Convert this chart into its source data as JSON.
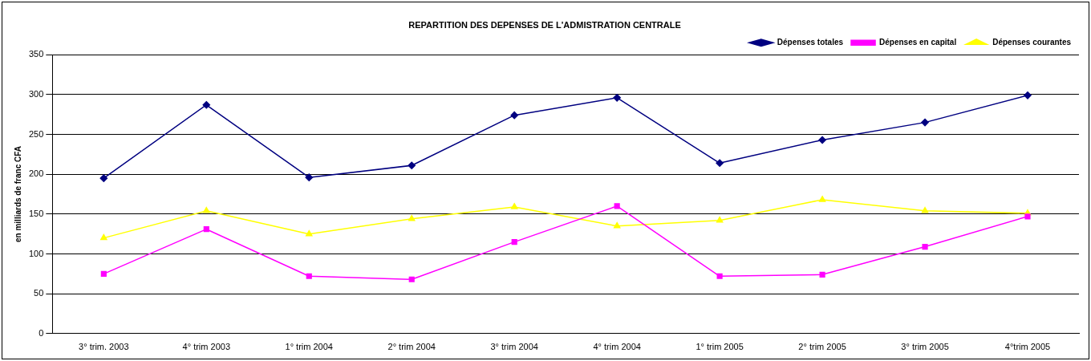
{
  "chart_data": {
    "type": "line",
    "title": "REPARTITION DES DEPENSES DE L'ADMISTRATION CENTRALE",
    "ylabel": "en milliards de franc CFA",
    "categories": [
      "3° trim. 2003",
      "4° trim 2003",
      "1° trim 2004",
      "2° trim 2004",
      "3° trim 2004",
      "4° trim 2004",
      "1° trim 2005",
      "2° trim 2005",
      "3° trim 2005",
      "4°trim 2005"
    ],
    "series": [
      {
        "name": "Dépenses totales",
        "color": "#000080",
        "marker": "diamond",
        "values": [
          195,
          287,
          196,
          211,
          274,
          296,
          214,
          243,
          265,
          299
        ]
      },
      {
        "name": "Dépenses en capital",
        "color": "#ff00ff",
        "marker": "square",
        "values": [
          75,
          131,
          72,
          68,
          115,
          160,
          72,
          74,
          109,
          147
        ]
      },
      {
        "name": "Dépenses courantes",
        "color": "#ffff00",
        "marker": "triangle",
        "values": [
          120,
          154,
          125,
          144,
          159,
          135,
          142,
          168,
          154,
          151
        ]
      }
    ],
    "ylim": [
      0,
      350
    ],
    "yticks": [
      0,
      50,
      100,
      150,
      200,
      250,
      300,
      350
    ],
    "grid": "y",
    "legend": "top right"
  }
}
